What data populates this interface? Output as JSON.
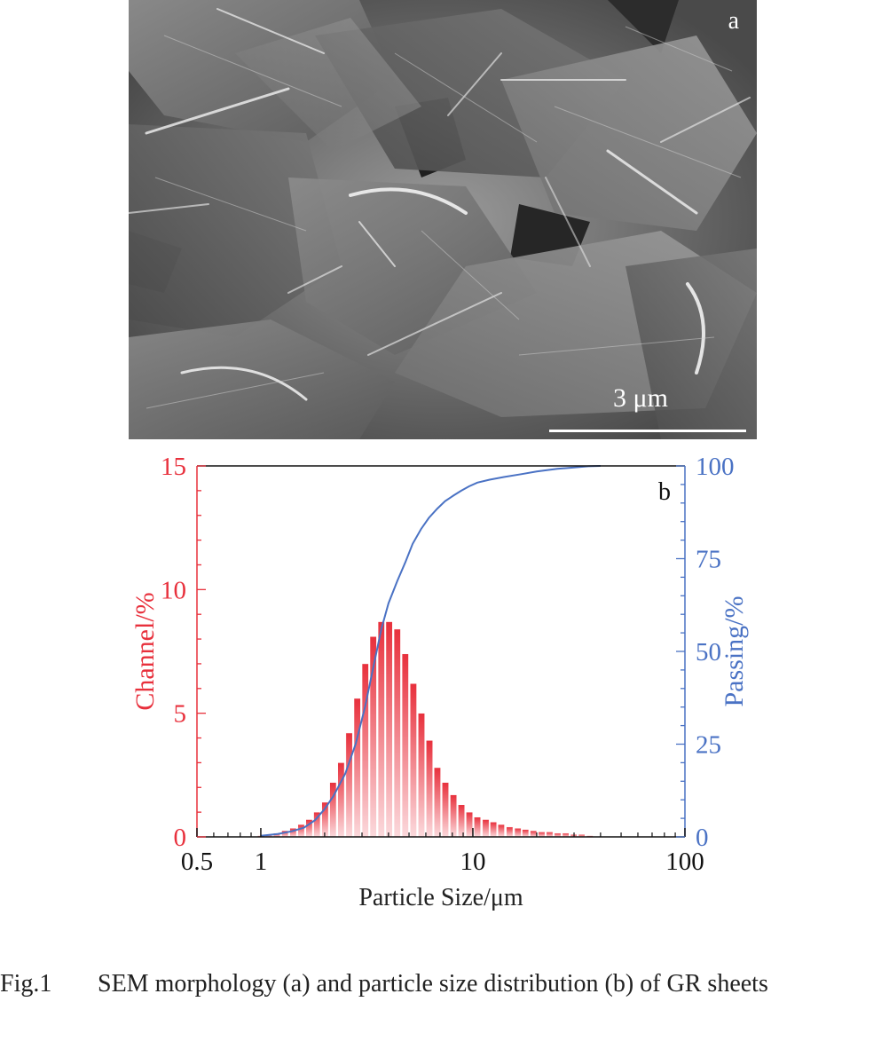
{
  "figure": {
    "panel_a": {
      "label": "a",
      "scale_bar": "3 μm"
    },
    "caption": {
      "label": "Fig.1",
      "text": "SEM morphology (a) and particle size distribution (b) of GR sheets"
    }
  },
  "chart_data": {
    "type": "bar",
    "panel_label": "b",
    "xlabel": "Particle Size/μm",
    "ylabel_left": "Channel/%",
    "ylabel_right": "Passing/%",
    "x_scale": "log",
    "xlim": [
      0.5,
      100
    ],
    "x_ticks": [
      0.5,
      1,
      10,
      100
    ],
    "x_tick_labels": [
      "0.5",
      "1",
      "10",
      "100"
    ],
    "ylim_left": [
      0,
      15
    ],
    "y_ticks_left": [
      0,
      5,
      10,
      15
    ],
    "y_tick_labels_left": [
      "0",
      "5",
      "10",
      "15"
    ],
    "ylim_right": [
      0,
      100
    ],
    "y_ticks_right": [
      0,
      25,
      50,
      75,
      100
    ],
    "y_tick_labels_right": [
      "0",
      "25",
      "50",
      "75",
      "100"
    ],
    "grid": false,
    "colors": {
      "channel": "#e8303c",
      "passing": "#4a72c4"
    },
    "channel_bars": {
      "x": [
        1.0,
        1.09,
        1.19,
        1.3,
        1.42,
        1.55,
        1.69,
        1.84,
        2.01,
        2.19,
        2.39,
        2.61,
        2.85,
        3.11,
        3.39,
        3.7,
        4.03,
        4.4,
        4.8,
        5.24,
        5.72,
        6.24,
        6.8,
        7.42,
        8.1,
        8.83,
        9.63,
        10.5,
        11.5,
        12.5,
        13.6,
        14.9,
        16.3,
        17.7,
        19.3,
        21.1,
        23.0,
        25.1,
        27.4,
        29.9,
        32.6,
        35.6
      ],
      "values": [
        0.05,
        0.1,
        0.15,
        0.25,
        0.35,
        0.5,
        0.7,
        1.0,
        1.4,
        2.2,
        3.0,
        4.2,
        5.6,
        7.0,
        8.1,
        8.7,
        8.7,
        8.4,
        7.4,
        6.2,
        5.0,
        3.9,
        2.8,
        2.2,
        1.7,
        1.3,
        1.0,
        0.8,
        0.7,
        0.6,
        0.5,
        0.4,
        0.35,
        0.3,
        0.25,
        0.2,
        0.2,
        0.15,
        0.15,
        0.1,
        0.1,
        0.05
      ]
    },
    "passing_curve": {
      "x": [
        1.0,
        1.2,
        1.4,
        1.6,
        1.8,
        2.0,
        2.2,
        2.5,
        2.8,
        3.1,
        3.4,
        3.7,
        4.0,
        4.4,
        4.8,
        5.2,
        5.7,
        6.2,
        6.8,
        7.4,
        8.1,
        8.8,
        9.6,
        10.5,
        12,
        14,
        17,
        20,
        25,
        30,
        35,
        40
      ],
      "values": [
        0.3,
        0.8,
        1.5,
        2.5,
        4.5,
        7.5,
        11,
        17,
        25,
        35,
        46,
        56,
        63,
        69,
        74,
        79,
        83,
        86,
        88.5,
        90.5,
        92,
        93.3,
        94.5,
        95.5,
        96.3,
        97,
        97.8,
        98.5,
        99.2,
        99.6,
        99.9,
        100
      ]
    }
  }
}
